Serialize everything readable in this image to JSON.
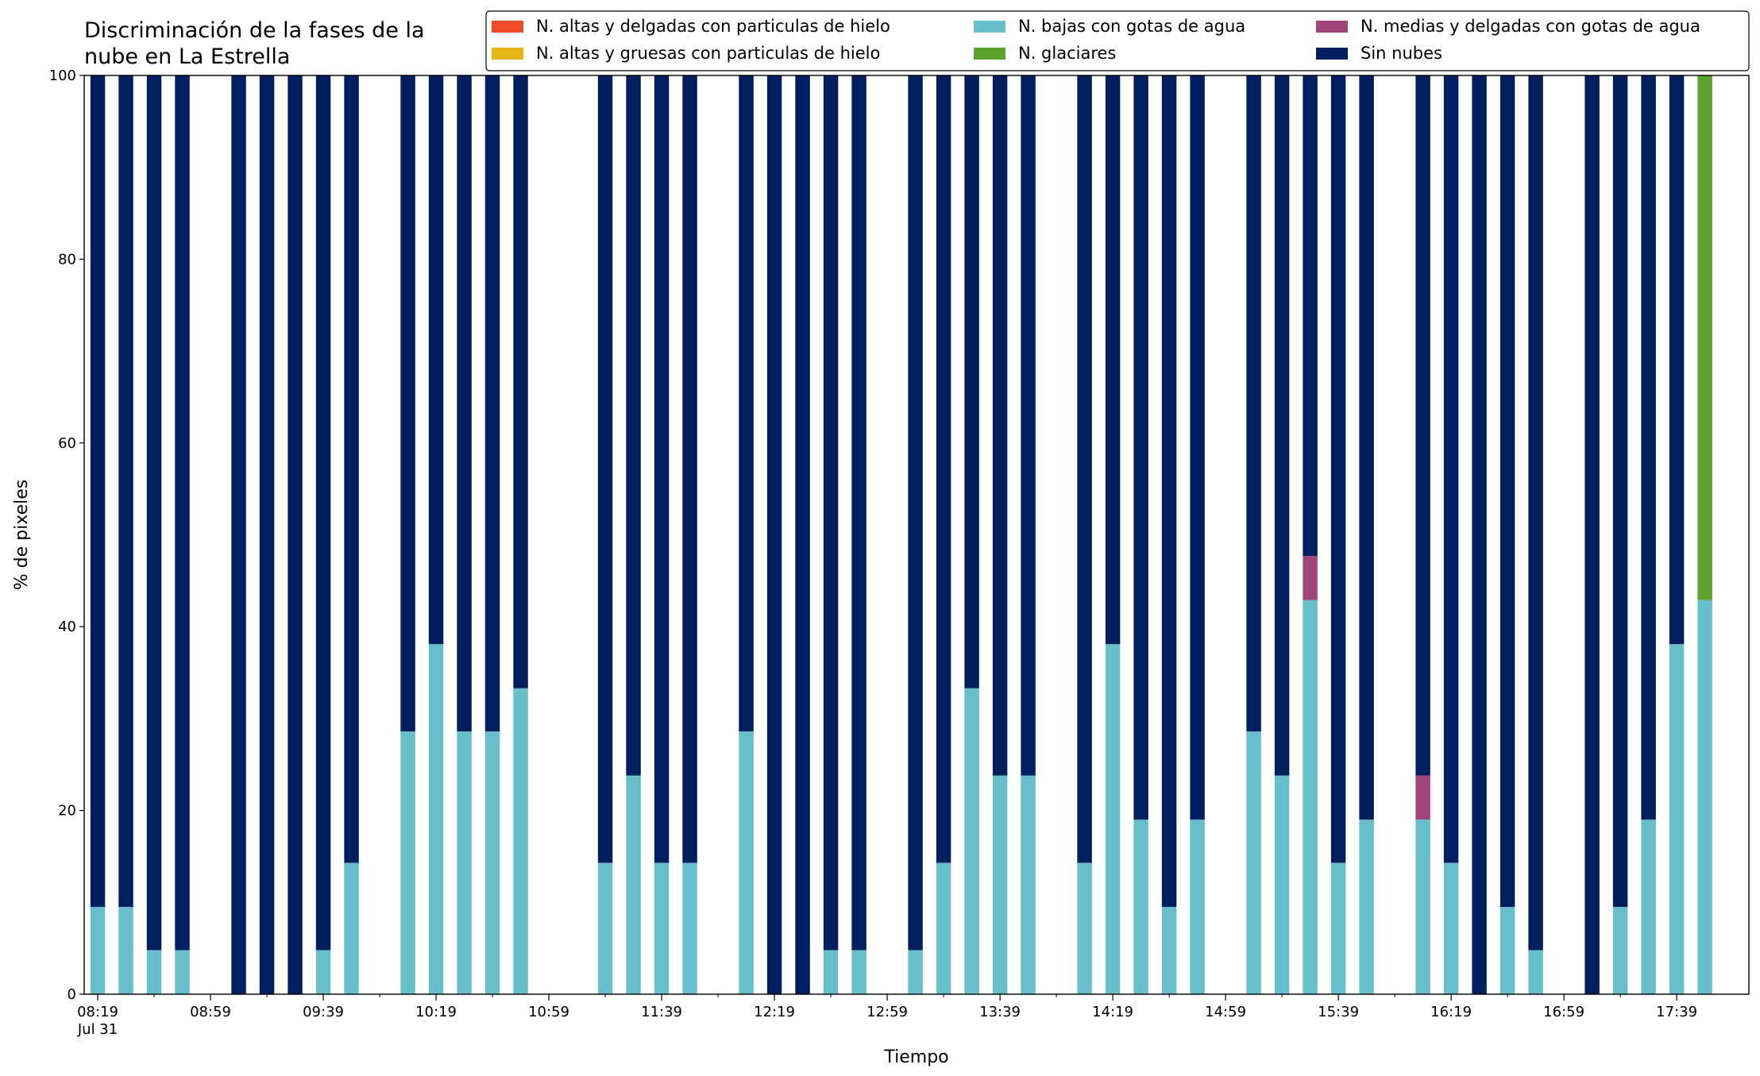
{
  "chart_data": {
    "type": "stacked_bar",
    "title": "Discriminación de la fases de la\nnube en La Estrella",
    "x_label": "Tiempo",
    "y_label": "% de pixeles",
    "x_date": "Jul 31",
    "categories": [
      "08:19",
      null,
      null,
      null,
      "08:59",
      null,
      null,
      null,
      "09:39",
      null,
      null,
      null,
      "10:19",
      null,
      null,
      null,
      "10:59",
      null,
      null,
      null,
      "11:39",
      null,
      null,
      null,
      "12:19",
      null,
      null,
      null,
      "12:59",
      null,
      null,
      null,
      "13:39",
      null,
      null,
      null,
      "14:19",
      null,
      null,
      null,
      "14:59",
      null,
      null,
      null,
      "15:39",
      null,
      null,
      null,
      "16:19",
      null,
      null,
      null,
      "16:59",
      null,
      null,
      null,
      "17:39",
      null
    ],
    "series": [
      {
        "name": "N. altas y delgadas con particulas de hielo",
        "color": "#f04a2a",
        "values": [
          0,
          0,
          0,
          0,
          null,
          0,
          0,
          0,
          0,
          0,
          null,
          0,
          0,
          0,
          0,
          0,
          null,
          null,
          0,
          0,
          0,
          0,
          null,
          0,
          0,
          0,
          0,
          0,
          null,
          0,
          0,
          0,
          0,
          0,
          null,
          0,
          0,
          0,
          0,
          0,
          null,
          0,
          0,
          0,
          0,
          0,
          null,
          0,
          0,
          0,
          0,
          0,
          null,
          0,
          0,
          0,
          0,
          0
        ]
      },
      {
        "name": "N. altas y gruesas con particulas de hielo",
        "color": "#e6b619",
        "values": [
          0,
          0,
          0,
          0,
          null,
          0,
          0,
          0,
          0,
          0,
          null,
          0,
          0,
          0,
          0,
          0,
          null,
          null,
          0,
          0,
          0,
          0,
          null,
          0,
          0,
          0,
          0,
          0,
          null,
          0,
          0,
          0,
          0,
          0,
          null,
          0,
          0,
          0,
          0,
          0,
          null,
          0,
          0,
          0,
          0,
          0,
          null,
          0,
          0,
          0,
          0,
          0,
          null,
          0,
          0,
          0,
          0,
          0
        ]
      },
      {
        "name": "N. bajas con gotas de agua",
        "color": "#66bfca",
        "values": [
          9.5,
          9.5,
          4.8,
          4.8,
          null,
          0,
          0,
          0,
          4.8,
          14.3,
          null,
          28.6,
          38.1,
          28.6,
          28.6,
          33.3,
          null,
          null,
          14.3,
          23.8,
          14.3,
          14.3,
          null,
          28.6,
          0,
          0,
          4.8,
          4.8,
          null,
          4.8,
          14.3,
          33.3,
          23.8,
          23.8,
          null,
          14.3,
          38.1,
          19.0,
          9.5,
          19.0,
          null,
          28.6,
          23.8,
          42.9,
          14.3,
          19.0,
          null,
          19.0,
          14.3,
          0,
          9.5,
          4.8,
          null,
          0,
          9.5,
          19.0,
          38.1,
          42.9
        ]
      },
      {
        "name": "N. glaciares",
        "color": "#5ba22f",
        "values": [
          0,
          0,
          0,
          0,
          null,
          0,
          0,
          0,
          0,
          0,
          null,
          0,
          0,
          0,
          0,
          0,
          null,
          null,
          0,
          0,
          0,
          0,
          null,
          0,
          0,
          0,
          0,
          0,
          null,
          0,
          0,
          0,
          0,
          0,
          null,
          0,
          0,
          0,
          0,
          0,
          null,
          0,
          0,
          0,
          0,
          0,
          null,
          0,
          0,
          0,
          0,
          0,
          null,
          0,
          0,
          0,
          0,
          57.1
        ]
      },
      {
        "name": "N. medias y delgadas con gotas de agua",
        "color": "#a2457a",
        "values": [
          0,
          0,
          0,
          0,
          null,
          0,
          0,
          0,
          0,
          0,
          null,
          0,
          0,
          0,
          0,
          0,
          null,
          null,
          0,
          0,
          0,
          0,
          null,
          0,
          0,
          0,
          0,
          0,
          null,
          0,
          0,
          0,
          0,
          0,
          null,
          0,
          0,
          0,
          0,
          0,
          null,
          0,
          0,
          4.8,
          0,
          0,
          null,
          4.8,
          0,
          0,
          0,
          0,
          null,
          0,
          0,
          0,
          0,
          0
        ]
      },
      {
        "name": "Sin nubes",
        "color": "#001f5f",
        "values": [
          90.5,
          90.5,
          95.2,
          95.2,
          null,
          100,
          100,
          100,
          95.2,
          85.7,
          null,
          71.4,
          61.9,
          71.4,
          71.4,
          66.7,
          null,
          null,
          85.7,
          76.2,
          85.7,
          85.7,
          null,
          71.4,
          100,
          100,
          95.2,
          95.2,
          null,
          95.2,
          85.7,
          66.7,
          76.2,
          76.2,
          null,
          85.7,
          61.9,
          81.0,
          90.5,
          81.0,
          null,
          71.4,
          76.2,
          52.3,
          85.7,
          81.0,
          null,
          76.2,
          85.7,
          100,
          90.5,
          95.2,
          null,
          100,
          90.5,
          81.0,
          61.9,
          0
        ]
      }
    ],
    "ylim": [
      0,
      100
    ],
    "yticks": [
      0,
      20,
      40,
      60,
      80,
      100
    ],
    "grid": false,
    "legend": "upper right"
  }
}
